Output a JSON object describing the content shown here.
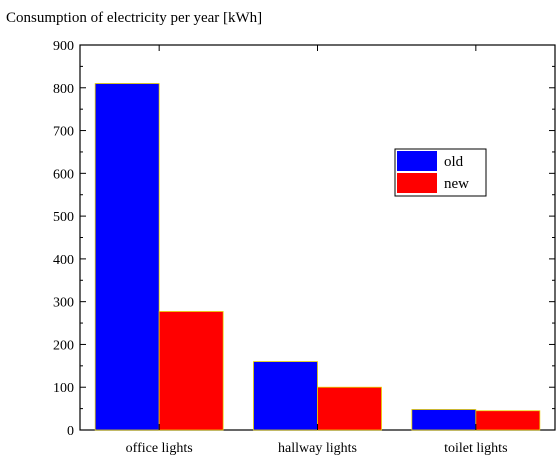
{
  "chart_data": {
    "type": "bar",
    "title": "Consumption of electricity per year  [kWh]",
    "categories": [
      "office lights",
      "hallway lights",
      "toilet lights"
    ],
    "series": [
      {
        "name": "old",
        "values": [
          810,
          160,
          48
        ],
        "color": "#0000ff"
      },
      {
        "name": "new",
        "values": [
          277,
          100,
          45
        ],
        "color": "#ff0000"
      }
    ],
    "ylim": [
      0,
      900
    ],
    "yticks": [
      0,
      100,
      200,
      300,
      400,
      500,
      600,
      700,
      800,
      900
    ],
    "legend_position": "top-right",
    "grid": false
  }
}
